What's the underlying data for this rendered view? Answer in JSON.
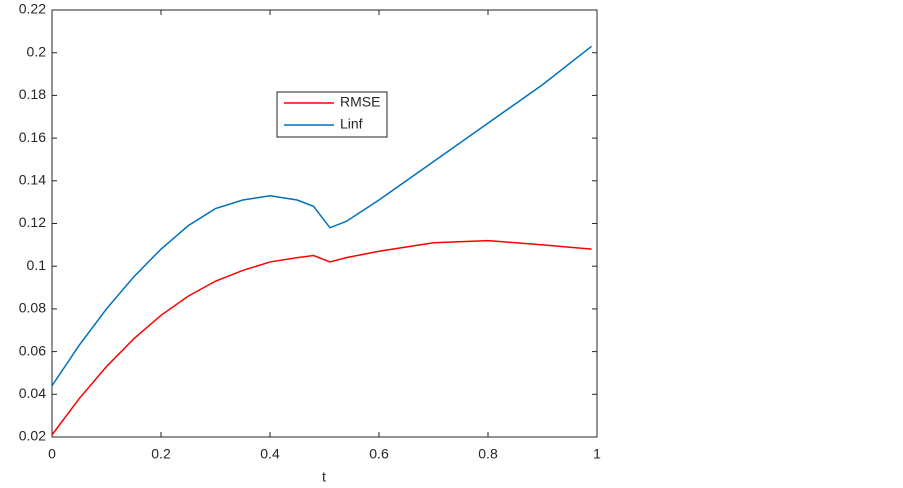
{
  "chart_data": {
    "type": "line",
    "xlabel": "t",
    "x": [
      0,
      0.05,
      0.1,
      0.15,
      0.2,
      0.25,
      0.3,
      0.35,
      0.4,
      0.45,
      0.48,
      0.51,
      0.54,
      0.6,
      0.7,
      0.8,
      0.9,
      0.99
    ],
    "series": [
      {
        "name": "RMSE",
        "color": "#ff0000",
        "values": [
          0.021,
          0.038,
          0.053,
          0.066,
          0.077,
          0.086,
          0.093,
          0.098,
          0.102,
          0.104,
          0.105,
          0.102,
          0.104,
          0.107,
          0.111,
          0.112,
          0.11,
          0.108
        ]
      },
      {
        "name": "Linf",
        "color": "#0072bd",
        "values": [
          0.044,
          0.063,
          0.08,
          0.095,
          0.108,
          0.119,
          0.127,
          0.131,
          0.133,
          0.131,
          0.128,
          0.118,
          0.121,
          0.131,
          0.149,
          0.167,
          0.185,
          0.203
        ]
      }
    ],
    "xlim": [
      0,
      1
    ],
    "xticks": [
      0,
      0.2,
      0.4,
      0.6,
      0.8,
      1
    ],
    "ylim": [
      0.02,
      0.22
    ],
    "yticks": [
      0.02,
      0.04,
      0.06,
      0.08,
      0.1,
      0.12,
      0.14,
      0.16,
      0.18,
      0.2,
      0.22
    ],
    "grid": false
  }
}
